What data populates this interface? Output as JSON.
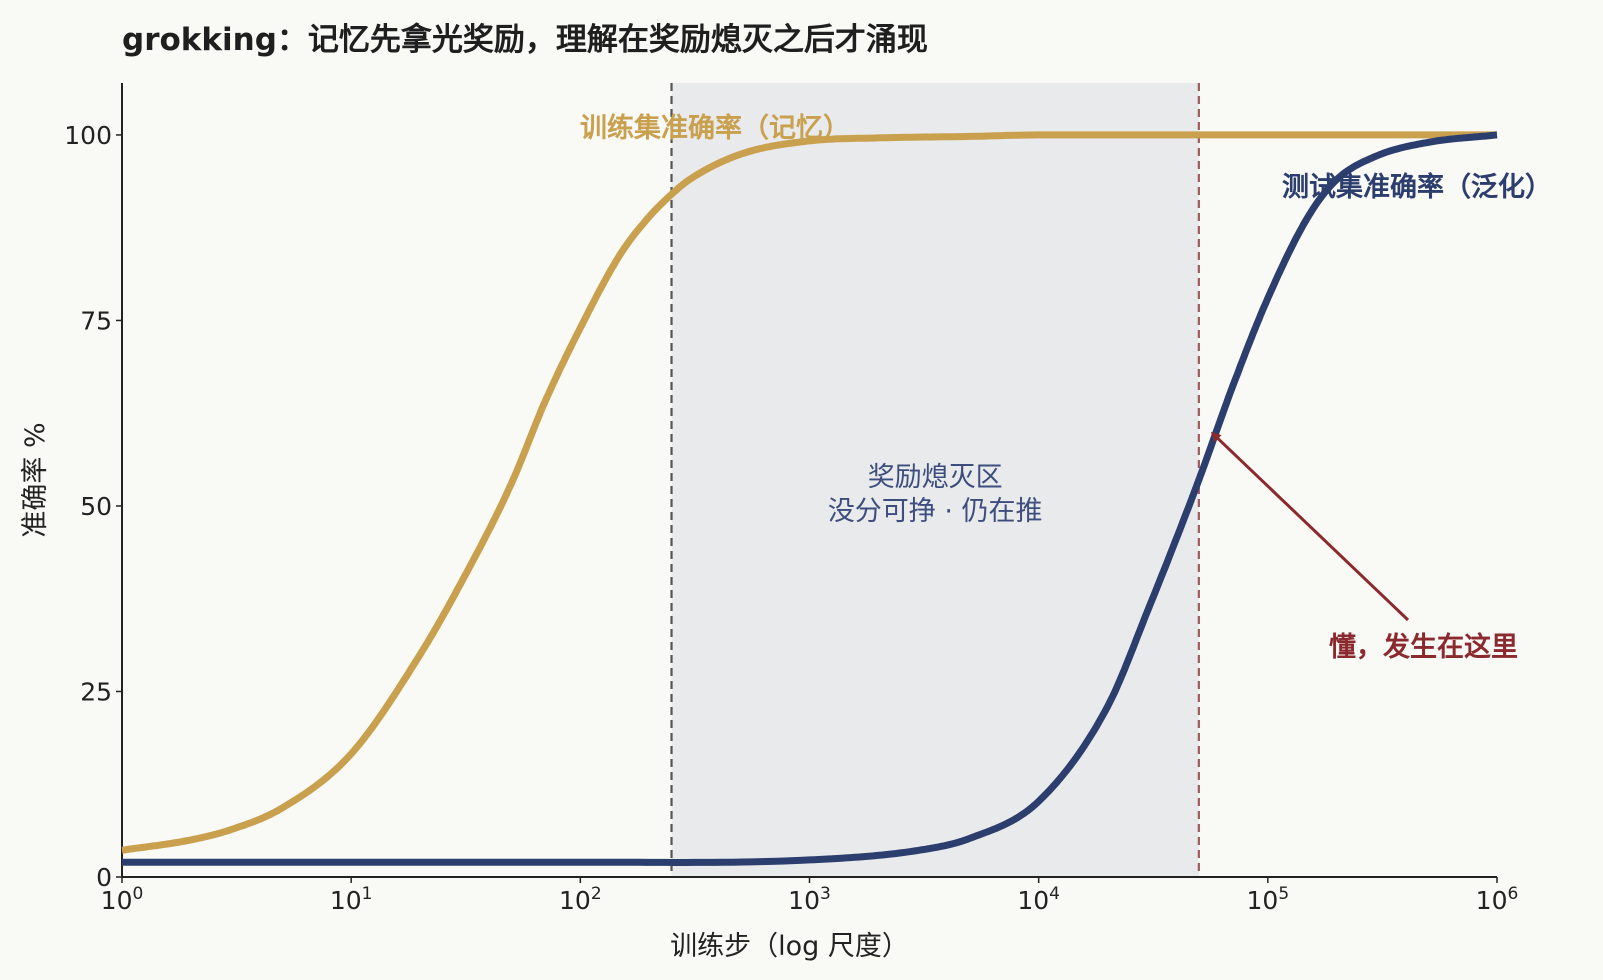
{
  "chart_data": {
    "type": "line",
    "title": "grokking：记忆先拿光奖励，理解在奖励熄灭之后才涌现",
    "xlabel": "训练步（log 尺度）",
    "ylabel": "准确率 %",
    "xscale": "log",
    "xlim": [
      1,
      1000000
    ],
    "ylim": [
      0,
      107
    ],
    "x_ticks": [
      {
        "value": 1,
        "base": "10",
        "exp": "0"
      },
      {
        "value": 10,
        "base": "10",
        "exp": "1"
      },
      {
        "value": 100,
        "base": "10",
        "exp": "2"
      },
      {
        "value": 1000,
        "base": "10",
        "exp": "3"
      },
      {
        "value": 10000,
        "base": "10",
        "exp": "4"
      },
      {
        "value": 100000,
        "base": "10",
        "exp": "5"
      },
      {
        "value": 1000000,
        "base": "10",
        "exp": "6"
      }
    ],
    "y_ticks": [
      0,
      25,
      50,
      75,
      100
    ],
    "series": [
      {
        "name": "训练集准确率（记忆）",
        "color": "#c9a04e",
        "x": [
          1,
          2,
          3,
          5,
          10,
          20,
          30,
          50,
          70,
          100,
          150,
          200,
          250,
          300,
          500,
          1000,
          2000,
          5000,
          10000,
          100000,
          1000000
        ],
        "y": [
          3.6,
          5.0,
          6.4,
          9.3,
          16.6,
          30.0,
          39.5,
          53.0,
          64.0,
          74.0,
          84.0,
          89.0,
          92.0,
          94.0,
          97.4,
          99.2,
          99.6,
          99.8,
          100,
          100,
          100
        ]
      },
      {
        "name": "测试集准确率（泛化）",
        "color": "#2c3e6e",
        "x": [
          1,
          100,
          1000,
          3000,
          5000,
          10000,
          20000,
          30000,
          50000,
          70000,
          100000,
          150000,
          200000,
          300000,
          500000,
          1000000
        ],
        "y": [
          2.0,
          2.0,
          2.3,
          3.6,
          5.2,
          10.2,
          23.0,
          36.0,
          53.5,
          66.0,
          78.0,
          89.0,
          94.0,
          97.2,
          99.0,
          100
        ]
      }
    ],
    "shaded_region": {
      "x": [
        250,
        50000
      ],
      "label_line1": "奖励熄灭区",
      "label_line2": "没分可挣 · 仍在推",
      "fill": "#e9eaec",
      "text_color": "#3d4e7e"
    },
    "vlines": [
      {
        "x": 250,
        "color": "#555555",
        "style": "dashed"
      },
      {
        "x": 50000,
        "color": "#a05a5f",
        "style": "dashed"
      }
    ],
    "annotation": {
      "text": "懂，发生在这里",
      "color": "#8b2a2e",
      "text_at": {
        "x": 200000,
        "y": 31
      },
      "arrow_to": {
        "x": 55000,
        "y": 59
      }
    },
    "grid": false,
    "legend": "none"
  }
}
